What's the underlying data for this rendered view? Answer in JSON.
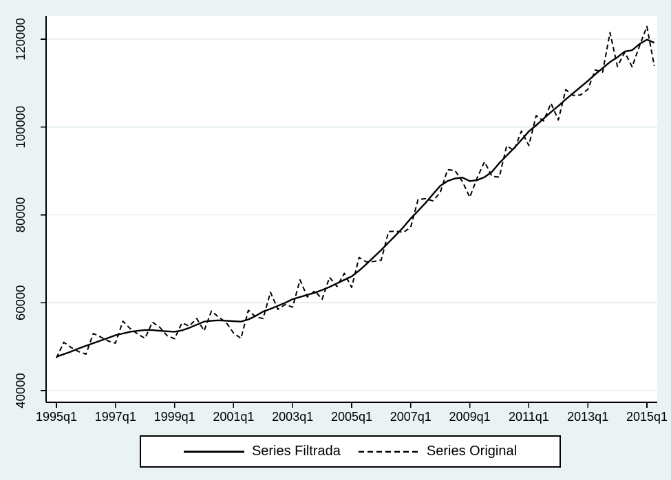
{
  "chart_data": {
    "type": "line",
    "title": "",
    "xlabel": "",
    "ylabel": "",
    "x_start": "1995q1",
    "x_end": "2015q2",
    "x_tick_labels": [
      "1995q1",
      "1997q1",
      "1999q1",
      "2001q1",
      "2003q1",
      "2005q1",
      "2007q1",
      "2009q1",
      "2011q1",
      "2013q1",
      "2015q1"
    ],
    "x_tick_indices": [
      0,
      8,
      16,
      24,
      32,
      40,
      48,
      56,
      64,
      72,
      80
    ],
    "y_ticks": [
      40000,
      60000,
      80000,
      100000,
      120000
    ],
    "y_tick_labels": [
      "40000",
      "60000",
      "80000",
      "100000",
      "120000"
    ],
    "xlim": [
      -1.4,
      81.4
    ],
    "ylim": [
      37340,
      125320
    ],
    "grid": "horizontal",
    "legend_position": "bottom",
    "series": [
      {
        "name": "Series Filtrada",
        "style": "solid",
        "values": [
          47700,
          48300,
          48900,
          49600,
          50200,
          50800,
          51400,
          52000,
          52600,
          53000,
          53400,
          53600,
          53800,
          53800,
          53600,
          53500,
          53400,
          53700,
          54300,
          55000,
          55700,
          55900,
          56000,
          55900,
          55800,
          55700,
          56200,
          57000,
          58000,
          58600,
          59300,
          60000,
          60800,
          61300,
          61800,
          62300,
          62900,
          63600,
          64400,
          65200,
          66000,
          67300,
          68800,
          70400,
          72000,
          73700,
          75400,
          77200,
          79200,
          80900,
          82700,
          84700,
          86600,
          87700,
          88300,
          88500,
          87700,
          87900,
          88600,
          89800,
          91800,
          93500,
          95200,
          97100,
          99000,
          100400,
          101900,
          103400,
          104800,
          106300,
          107700,
          109100,
          110500,
          112000,
          113400,
          114800,
          115900,
          117200,
          117500,
          118900,
          119900,
          119200
        ]
      },
      {
        "name": "Series Original",
        "style": "dashed",
        "values": [
          47400,
          51000,
          49800,
          48900,
          48300,
          53000,
          52200,
          51300,
          50800,
          55800,
          54100,
          52900,
          51900,
          55600,
          54400,
          52500,
          51800,
          55400,
          54700,
          56400,
          53600,
          58100,
          56700,
          55500,
          53100,
          51900,
          58300,
          56800,
          56400,
          62400,
          58500,
          59600,
          59000,
          65200,
          61300,
          62700,
          60800,
          65800,
          63700,
          66700,
          63500,
          70300,
          69300,
          69400,
          69700,
          76200,
          76300,
          76000,
          77200,
          83500,
          83700,
          83200,
          85100,
          90300,
          90100,
          87600,
          84000,
          88400,
          92100,
          88800,
          88600,
          95700,
          94700,
          99100,
          95800,
          102600,
          101400,
          105400,
          101600,
          108500,
          107200,
          107300,
          108600,
          113000,
          112500,
          121500,
          113800,
          117000,
          113700,
          118500,
          122900,
          113900
        ]
      }
    ]
  },
  "legend": {
    "items": [
      {
        "label": "Series Filtrada",
        "line": "solid"
      },
      {
        "label": "Series Original",
        "line": "dashed"
      }
    ]
  },
  "colors": {
    "background": "#eaf2f3",
    "plot_background": "#ffffff",
    "gridline": "#dbe7ea",
    "line": "#000000",
    "text": "#000000",
    "legend_background": "#ffffff"
  }
}
